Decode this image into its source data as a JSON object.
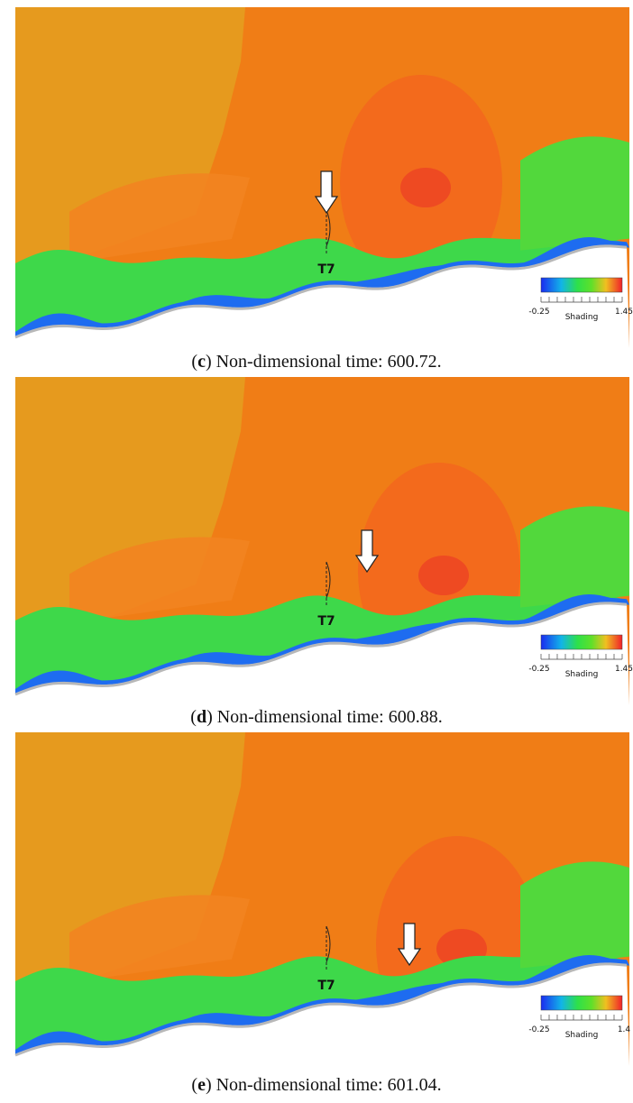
{
  "figures": [
    {
      "marker": "T7",
      "colorbar": {
        "min": -0.25,
        "max": 1.45,
        "title": "Shading"
      },
      "caption": {
        "parts": [
          "(",
          "c",
          ") Non-dimensional time: 600.72."
        ]
      }
    },
    {
      "marker": "T7",
      "colorbar": {
        "min": -0.25,
        "max": 1.45,
        "title": "Shading"
      },
      "caption": {
        "parts": [
          "(",
          "d",
          ") Non-dimensional time: 600.88."
        ]
      }
    },
    {
      "marker": "T7",
      "colorbar": {
        "min": -0.25,
        "max": 1.4,
        "title": "Shading"
      },
      "caption": {
        "parts": [
          "(",
          "e",
          ") Non-dimensional time: 601.04."
        ]
      }
    }
  ]
}
